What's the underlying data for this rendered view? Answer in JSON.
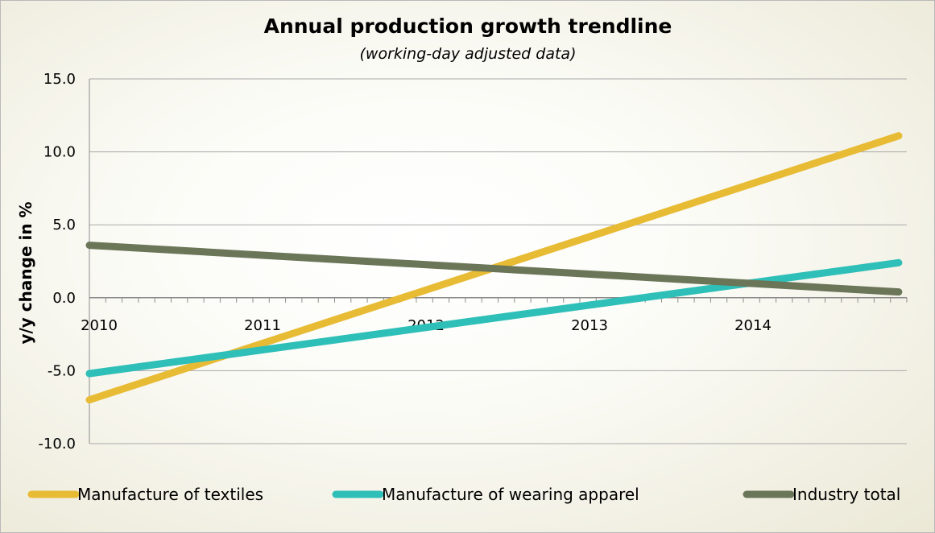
{
  "chart_data": {
    "type": "line",
    "title": "Annual production growth trendline",
    "subtitle": "(working-day adjusted data)",
    "xlabel": "",
    "ylabel": "y/y change in %",
    "x_tick_labels": [
      "2010",
      "2011",
      "2012",
      "2013",
      "2014"
    ],
    "x_ticks": [
      2010,
      2011,
      2012,
      2013,
      2014
    ],
    "xlim": [
      2010,
      2015
    ],
    "ylim": [
      -10,
      15
    ],
    "y_ticks": [
      -10,
      -5,
      0,
      5,
      10,
      15
    ],
    "y_tick_labels": [
      "-10.0",
      "-5.0",
      "0.0",
      "5.0",
      "10.0",
      "15.0"
    ],
    "grid": "horizontal",
    "legend_position": "bottom",
    "series": [
      {
        "name": "Manufacture of textiles",
        "color": "#E8BB35",
        "x": [
          2010,
          2014.95
        ],
        "values": [
          -7.0,
          11.1
        ]
      },
      {
        "name": "Manufacture of wearing apparel",
        "color": "#2EBFB8",
        "x": [
          2010,
          2014.95
        ],
        "values": [
          -5.2,
          2.4
        ]
      },
      {
        "name": "Industry total",
        "color": "#6B7659",
        "x": [
          2010,
          2014.95
        ],
        "values": [
          3.6,
          0.4
        ]
      }
    ]
  }
}
